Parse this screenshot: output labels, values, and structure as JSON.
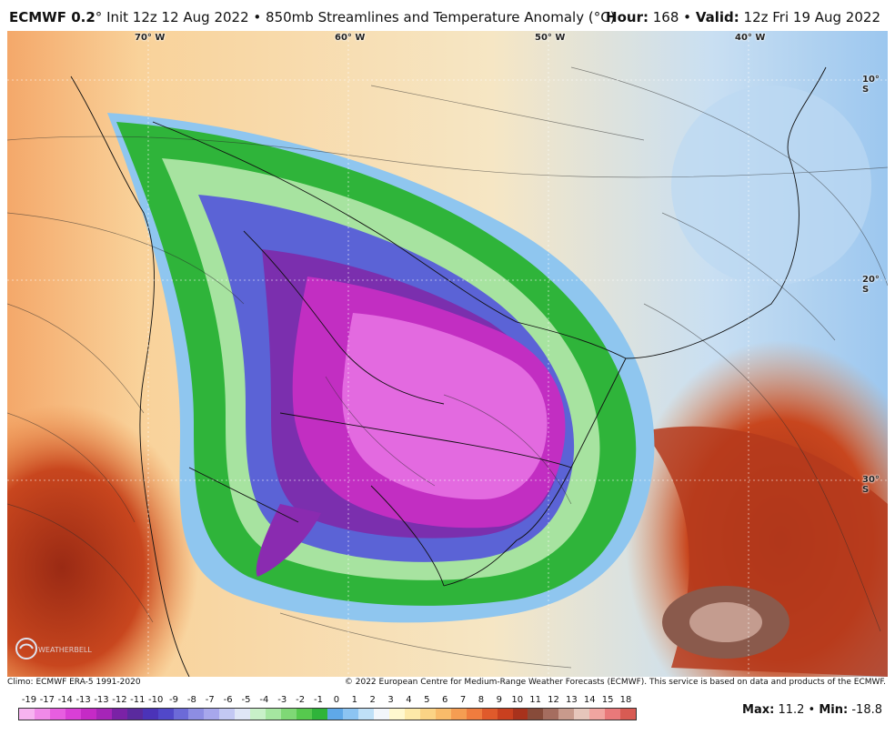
{
  "header": {
    "model": "ECMWF 0.2",
    "degree_mark": "°",
    "init_text": "Init 12z 12 Aug 2022",
    "separator": "•",
    "product": "850mb Streamlines and Temperature Anomaly (°C)",
    "hour_label": "Hour:",
    "hour_value": "168",
    "valid_label": "Valid:",
    "valid_value": "12z Fri 19 Aug 2022"
  },
  "map": {
    "longitude_labels": [
      "70° W",
      "60° W",
      "50° W",
      "40° W"
    ],
    "latitude_labels": [
      "10° S",
      "20° S",
      "30° S"
    ],
    "logo_text": "WEATHERBELL"
  },
  "footer": {
    "climatology": "Climo: ECMWF ERA-5 1991-2020",
    "copyright": "© 2022 European Centre for Medium-Range Weather Forecasts (ECMWF). This service is based on data and products of the ECMWF."
  },
  "legend": {
    "ticks": [
      "-19",
      "-17",
      "-14",
      "-13",
      "-13",
      "-12",
      "-11",
      "-10",
      "-9",
      "-8",
      "-7",
      "-6",
      "-5",
      "-4",
      "-3",
      "-2",
      "-1",
      "0",
      "1",
      "2",
      "3",
      "4",
      "5",
      "6",
      "7",
      "8",
      "9",
      "10",
      "11",
      "12",
      "13",
      "14",
      "15",
      "18"
    ],
    "colors": [
      "#f7b3f0",
      "#f08ae8",
      "#e75ee0",
      "#d93fd6",
      "#c52ac6",
      "#a625b8",
      "#7a22a6",
      "#5a2a9e",
      "#4b33b8",
      "#5148c9",
      "#6c6ad8",
      "#8d8de3",
      "#a7a7ec",
      "#c3c8f3",
      "#dfe6f6",
      "#c8f0c8",
      "#a5e6a0",
      "#7fd876",
      "#56c94e",
      "#2fb43a",
      "#5fa8e8",
      "#8cc4f2",
      "#bfe0f7",
      "#f2f6fb",
      "#fff8cf",
      "#fde9a8",
      "#fbd385",
      "#f9bb6a",
      "#f59d52",
      "#ef7c3e",
      "#e05a2b",
      "#c9401f",
      "#a8321c",
      "#874b3a",
      "#a56d5f",
      "#c89a8c",
      "#e6c6bb",
      "#f1a5a0",
      "#e9797a",
      "#d85b53"
    ]
  },
  "stats": {
    "max_label": "Max:",
    "max_value": "11.2",
    "min_label": "Min:",
    "min_value": "-18.8",
    "separator": "•"
  }
}
